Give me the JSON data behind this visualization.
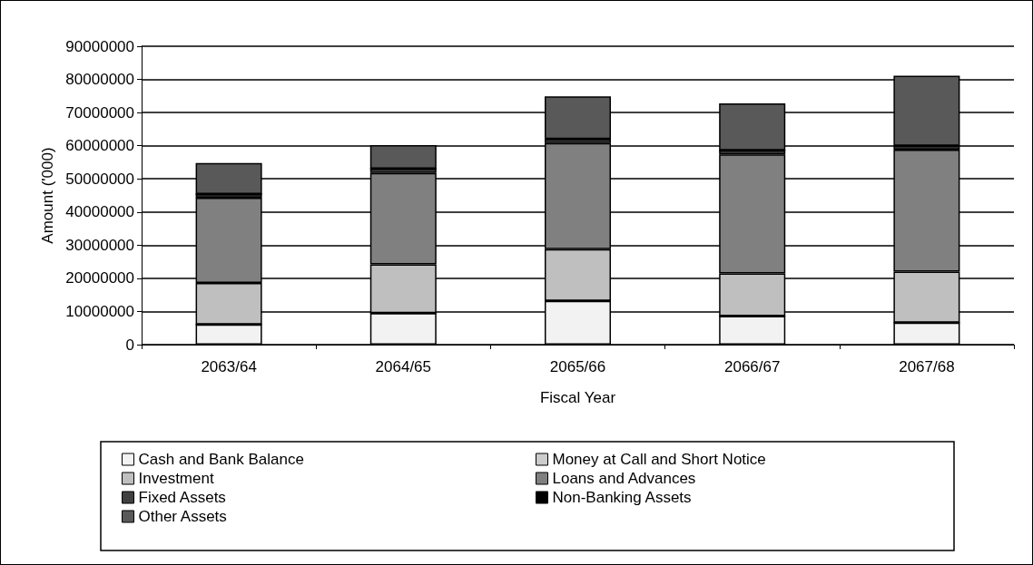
{
  "chart_data": {
    "type": "bar",
    "stacked": true,
    "categories": [
      "2063/64",
      "2064/65",
      "2065/66",
      "2066/67",
      "2067/68"
    ],
    "xlabel": "Fiscal Year",
    "ylabel": "Amount ('000)",
    "ylim": [
      0,
      90000000
    ],
    "yticks": [
      0,
      10000000,
      20000000,
      30000000,
      40000000,
      50000000,
      60000000,
      70000000,
      80000000,
      90000000
    ],
    "grid": "y",
    "legend": "bottom",
    "series": [
      {
        "name": "Cash and Bank Balance",
        "color": "#f2f2f2",
        "values": [
          6100000,
          9500000,
          13200000,
          8600000,
          6600000
        ]
      },
      {
        "name": "Money at Call and Short Notice",
        "color": "#cccccc",
        "values": [
          0,
          0,
          0,
          0,
          0
        ]
      },
      {
        "name": "Investment",
        "color": "#bfbfbf",
        "values": [
          12500000,
          14700000,
          15600000,
          12900000,
          15400000
        ]
      },
      {
        "name": "Loans and Advances",
        "color": "#808080",
        "values": [
          25700000,
          27600000,
          32000000,
          35900000,
          36800000
        ]
      },
      {
        "name": "Fixed Assets",
        "color": "#404040",
        "values": [
          1100000,
          1300000,
          1200000,
          1200000,
          1200000
        ]
      },
      {
        "name": "Non-Banking Assets",
        "color": "#000000",
        "values": [
          0,
          0,
          0,
          0,
          0
        ]
      },
      {
        "name": "Other Assets",
        "color": "#595959",
        "values": [
          9400000,
          7100000,
          12900000,
          14200000,
          21100000
        ]
      }
    ]
  }
}
